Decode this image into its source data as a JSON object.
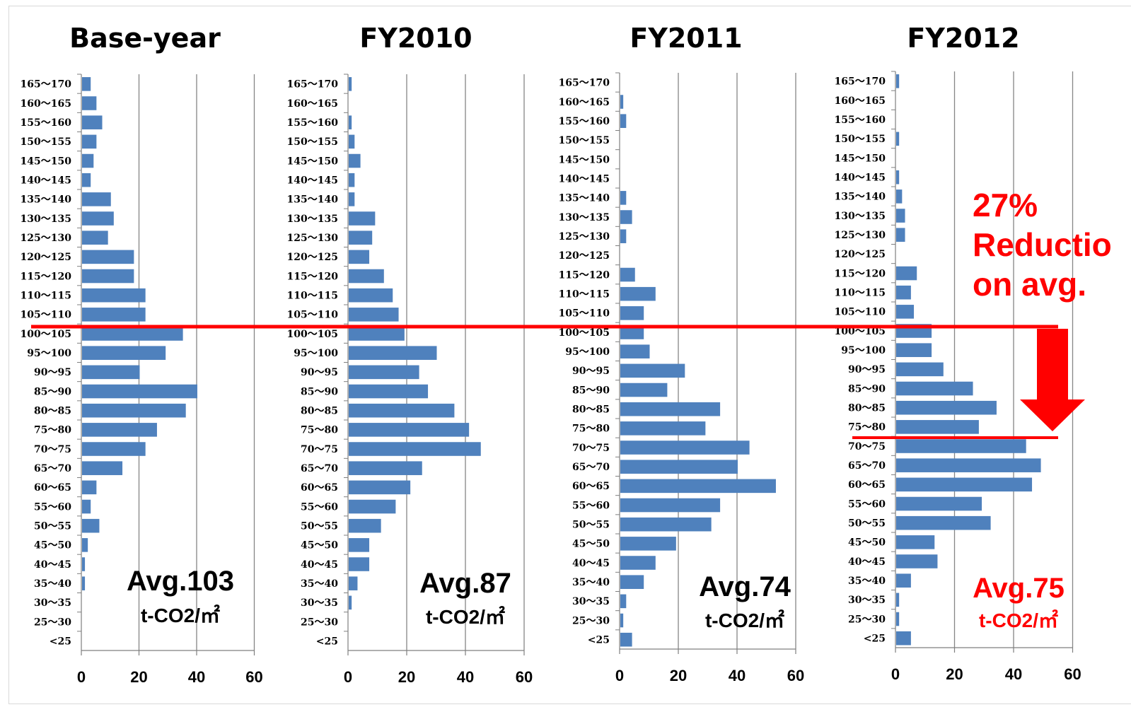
{
  "colors": {
    "bar": "#4f81bd",
    "grid": "#868686",
    "axis": "#7f7f7f",
    "highlight": "#ff0000",
    "text": "#000000"
  },
  "chart_data": [
    {
      "type": "bar",
      "orientation": "horizontal",
      "title": "Base-year",
      "categories": [
        "<25",
        "25～30",
        "30～35",
        "35～40",
        "40～45",
        "45～50",
        "50～55",
        "55～60",
        "60～65",
        "65～70",
        "70～75",
        "75～80",
        "80～85",
        "85～90",
        "90～95",
        "95～100",
        "100～105",
        "105～110",
        "110～115",
        "115～120",
        "120～125",
        "125～130",
        "130～135",
        "135～140",
        "140～145",
        "145～150",
        "150～155",
        "155～160",
        "160～165",
        "165～170"
      ],
      "values": [
        0,
        0,
        0,
        1,
        1,
        2,
        6,
        3,
        5,
        14,
        22,
        26,
        36,
        40,
        20,
        29,
        35,
        22,
        22,
        18,
        18,
        9,
        11,
        10,
        3,
        4,
        5,
        7,
        5,
        3
      ],
      "xlim": [
        0,
        60
      ],
      "xticks": [
        0,
        20,
        40,
        60
      ],
      "grid": true,
      "avg_label": "Avg.103",
      "unit_label": "t-CO2/㎡",
      "avg_color": "#000000"
    },
    {
      "type": "bar",
      "orientation": "horizontal",
      "title": "FY2010",
      "categories": [
        "<25",
        "25～30",
        "30～35",
        "35～40",
        "40～45",
        "45～50",
        "50～55",
        "55～60",
        "60～65",
        "65～70",
        "70～75",
        "75～80",
        "80～85",
        "85～90",
        "90～95",
        "95～100",
        "100～105",
        "105～110",
        "110～115",
        "115～120",
        "120～125",
        "125～130",
        "130～135",
        "135～140",
        "140～145",
        "145～150",
        "150～155",
        "155～160",
        "160～165",
        "165～170"
      ],
      "values": [
        0,
        0,
        1,
        3,
        7,
        7,
        11,
        16,
        21,
        25,
        45,
        41,
        36,
        27,
        24,
        30,
        19,
        17,
        15,
        12,
        7,
        8,
        9,
        2,
        2,
        4,
        2,
        1,
        0,
        1
      ],
      "xlim": [
        0,
        60
      ],
      "xticks": [
        0,
        20,
        40,
        60
      ],
      "grid": true,
      "avg_label": "Avg.87",
      "unit_label": "t-CO2/㎡",
      "avg_color": "#000000"
    },
    {
      "type": "bar",
      "orientation": "horizontal",
      "title": "FY2011",
      "categories": [
        "<25",
        "25～30",
        "30～35",
        "35～40",
        "40～45",
        "45～50",
        "50～55",
        "55～60",
        "60～65",
        "65～70",
        "70～75",
        "75～80",
        "80～85",
        "85～90",
        "90～95",
        "95～100",
        "100～105",
        "105～110",
        "110～115",
        "115～120",
        "120～125",
        "125～130",
        "130～135",
        "135～140",
        "140～145",
        "145～150",
        "150～155",
        "155～160",
        "160～165",
        "165～170"
      ],
      "values": [
        4,
        1,
        2,
        8,
        12,
        19,
        31,
        34,
        53,
        40,
        44,
        29,
        34,
        16,
        22,
        10,
        8,
        8,
        12,
        5,
        0,
        2,
        4,
        2,
        0,
        0,
        0,
        2,
        1,
        0
      ],
      "xlim": [
        0,
        60
      ],
      "xticks": [
        0,
        20,
        40,
        60
      ],
      "grid": true,
      "avg_label": "Avg.74",
      "unit_label": "t-CO2/㎡",
      "avg_color": "#000000"
    },
    {
      "type": "bar",
      "orientation": "horizontal",
      "title": "FY2012",
      "categories": [
        "<25",
        "25～30",
        "30～35",
        "35～40",
        "40～45",
        "45～50",
        "50～55",
        "55～60",
        "60～65",
        "65～70",
        "70～75",
        "75～80",
        "80～85",
        "85～90",
        "90～95",
        "95～100",
        "100～105",
        "105～110",
        "110～115",
        "115～120",
        "120～125",
        "125～130",
        "130～135",
        "135～140",
        "140～145",
        "145～150",
        "150～155",
        "155～160",
        "160～165",
        "165～170"
      ],
      "values": [
        5,
        1,
        1,
        5,
        14,
        13,
        32,
        29,
        46,
        49,
        44,
        28,
        34,
        26,
        16,
        12,
        12,
        6,
        5,
        7,
        0,
        3,
        3,
        2,
        1,
        0,
        1,
        0,
        0,
        1
      ],
      "xlim": [
        0,
        60
      ],
      "xticks": [
        0,
        20,
        40,
        60
      ],
      "grid": true,
      "avg_label": "Avg.75",
      "unit_label": "t-CO2/㎡",
      "avg_color": "#ff0000"
    }
  ],
  "annotation": {
    "line1": "27%",
    "line2": "Reductio",
    "line3": "on avg."
  }
}
